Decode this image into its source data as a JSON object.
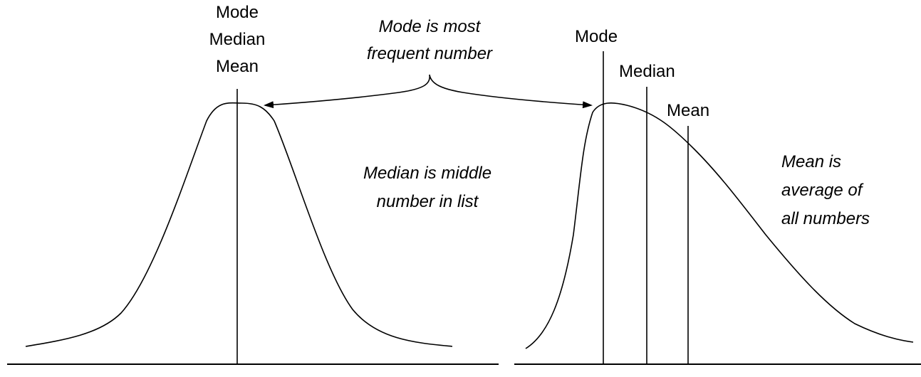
{
  "left_distribution": {
    "labels": [
      "Mode",
      "Median",
      "Mean"
    ]
  },
  "right_distribution": {
    "mode_label": "Mode",
    "median_label": "Median",
    "mean_label": "Mean"
  },
  "annotations": {
    "mode_note": [
      "Mode is most",
      "frequent number"
    ],
    "median_note": [
      "Median is middle",
      "number in list"
    ],
    "mean_note": [
      "Mean is",
      "average of",
      "all numbers"
    ]
  },
  "colors": {
    "ink": "#000000",
    "background": "#ffffff"
  }
}
